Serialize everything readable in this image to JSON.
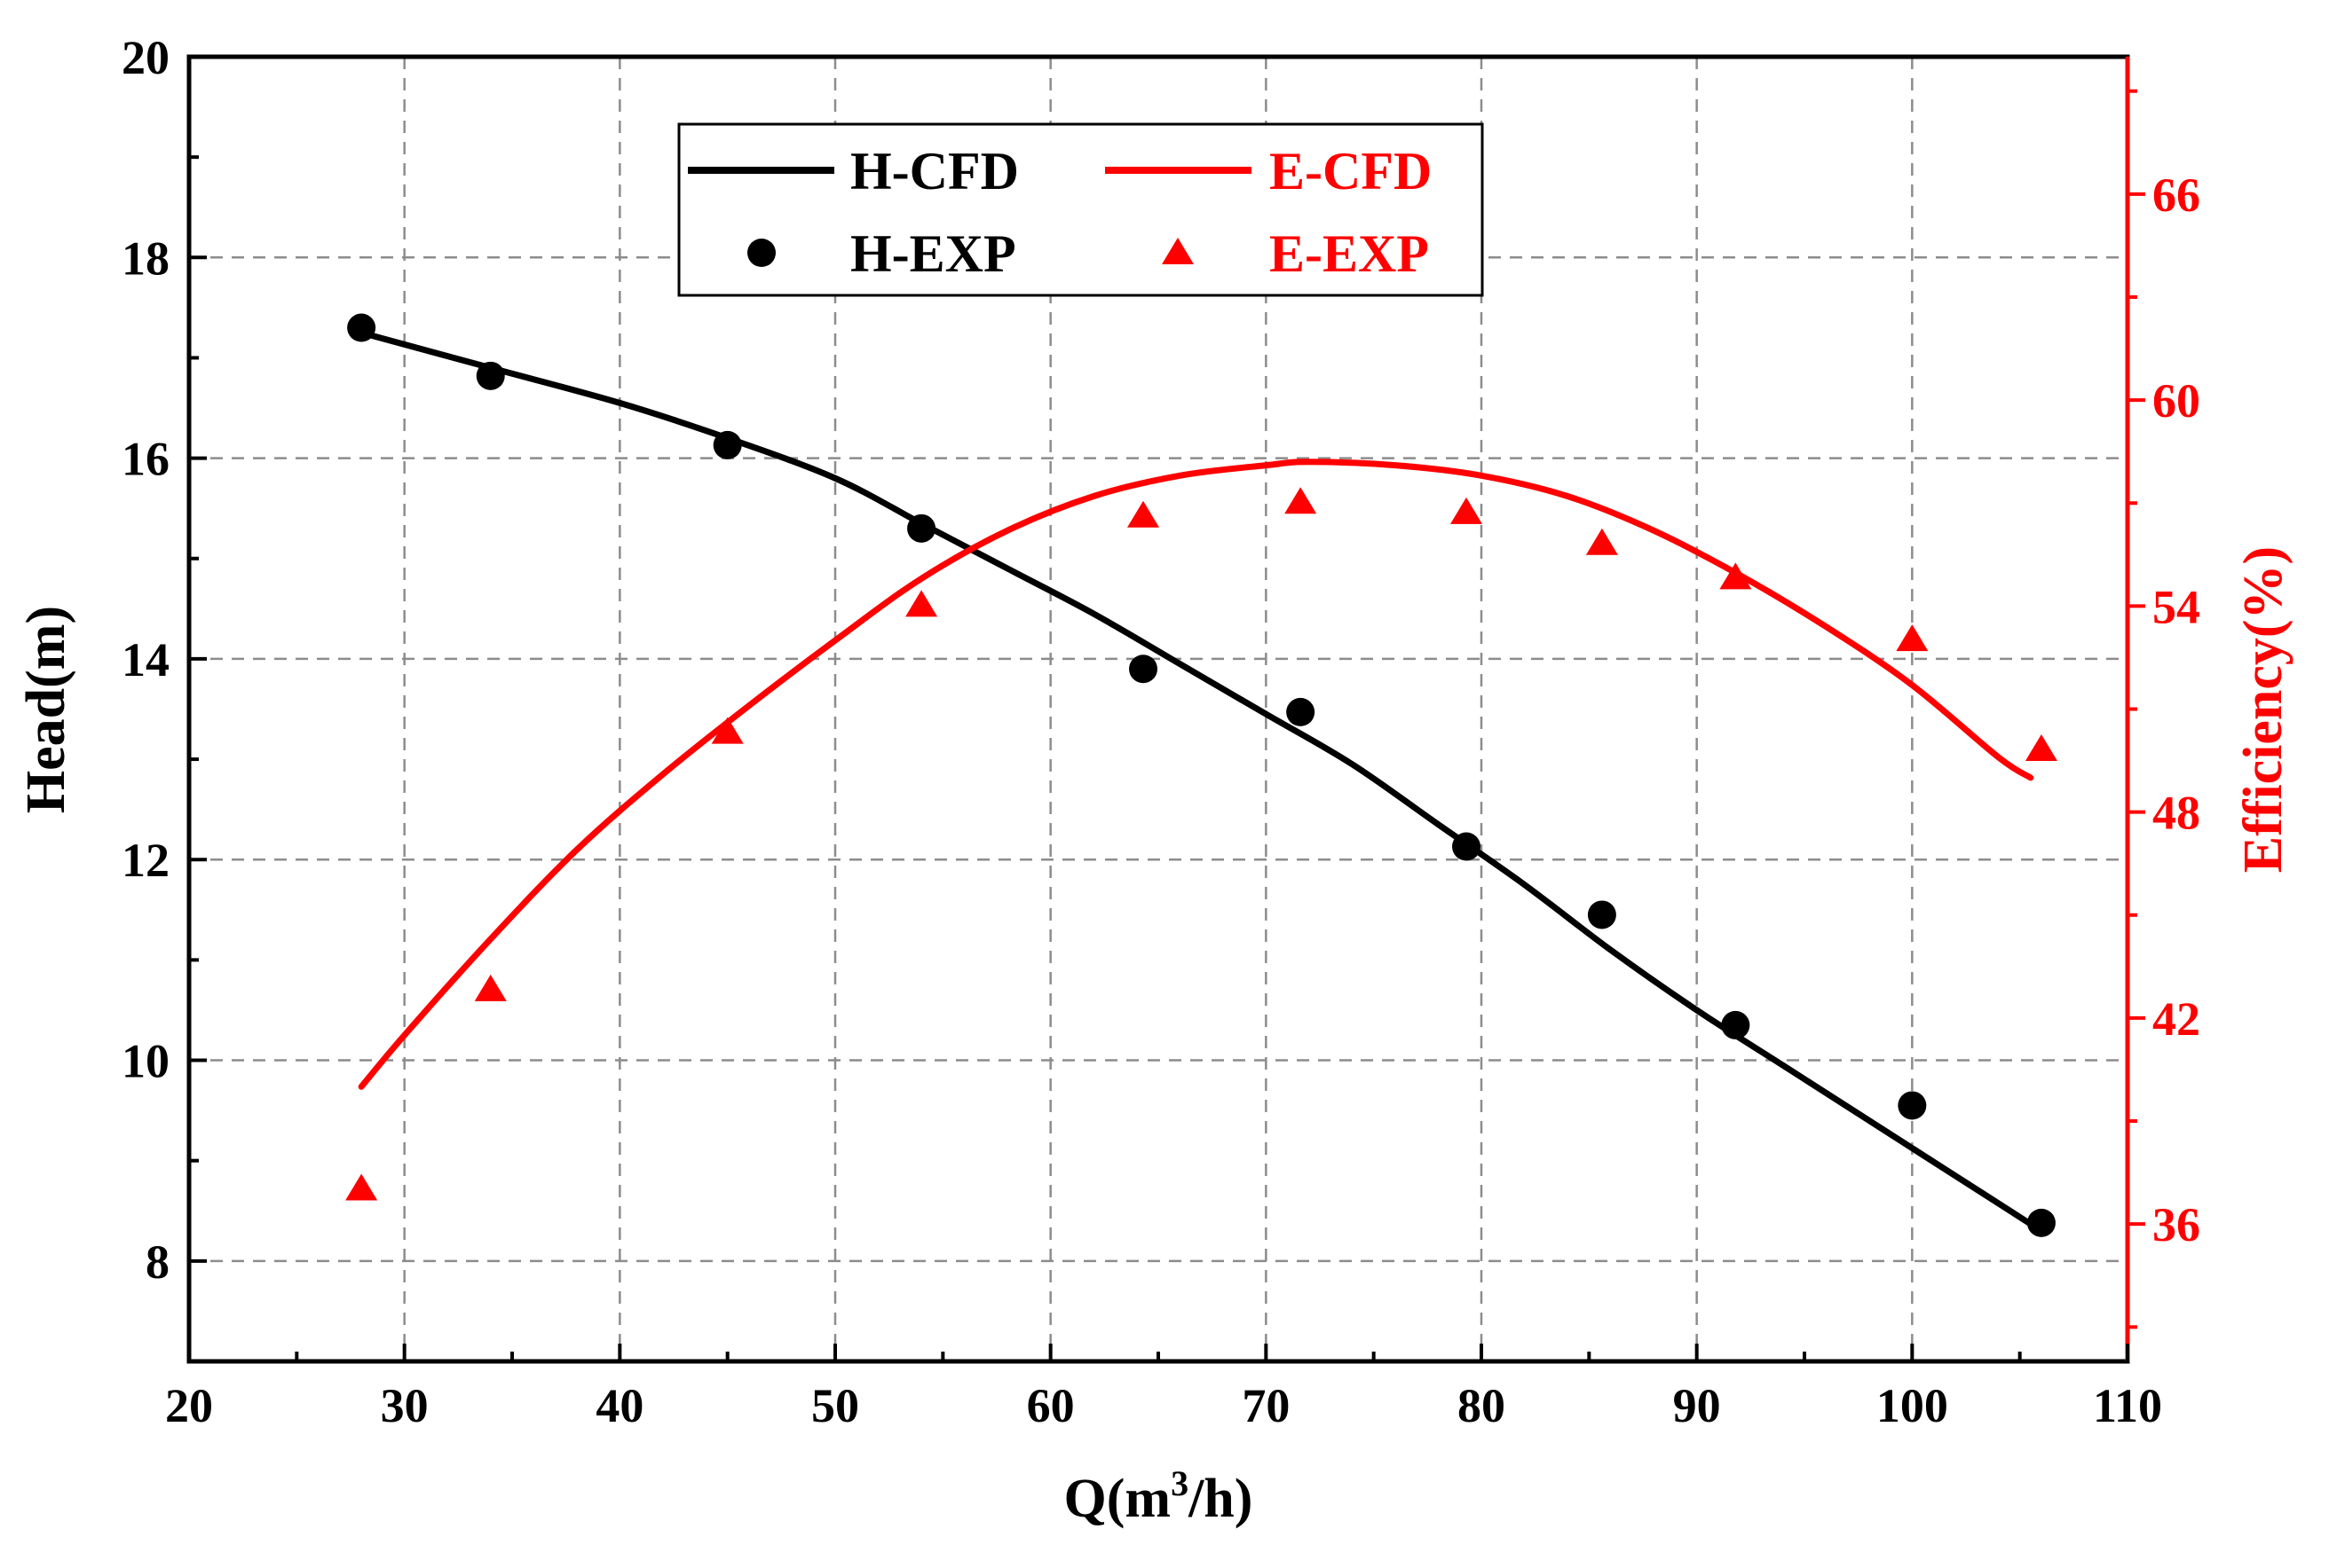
{
  "chart_data": {
    "type": "line",
    "title": "",
    "xlabel": {
      "prefix": "Q(m",
      "sup": "3",
      "suffix": "/h)"
    },
    "ylabel_left": "Head(m)",
    "ylabel_right": "Efficiency(%)",
    "xlim": [
      20,
      110
    ],
    "ylim_left": [
      7,
      20
    ],
    "ylim_right": [
      32,
      70
    ],
    "x_ticks": [
      20,
      30,
      40,
      50,
      60,
      70,
      80,
      90,
      100,
      110
    ],
    "x_tick_labels": [
      "20",
      "30",
      "40",
      "50",
      "60",
      "70",
      "80",
      "90",
      "100",
      "110"
    ],
    "y_left_ticks": [
      8,
      10,
      12,
      14,
      16,
      18,
      20
    ],
    "y_left_tick_labels": [
      "8",
      "10",
      "12",
      "14",
      "16",
      "18",
      "20"
    ],
    "y_right_ticks": [
      36,
      42,
      48,
      54,
      60,
      66
    ],
    "y_right_tick_labels": [
      "36",
      "42",
      "48",
      "54",
      "60",
      "66"
    ],
    "grid": true,
    "legend_position": "top-center",
    "colors": {
      "head": "#000000",
      "efficiency": "#ff0000",
      "grid": "#8c8c8c"
    },
    "series": [
      {
        "name": "H-CFD",
        "kind": "line",
        "axis": "left",
        "color": "#000000",
        "x": [
          28,
          34,
          40,
          45,
          50,
          54,
          58,
          62,
          66,
          70,
          74,
          78,
          82,
          86,
          90,
          94,
          98,
          102,
          106
        ],
        "y": [
          17.25,
          16.9,
          16.55,
          16.2,
          15.8,
          15.35,
          14.9,
          14.45,
          13.95,
          13.45,
          12.95,
          12.35,
          11.75,
          11.1,
          10.5,
          9.95,
          9.4,
          8.85,
          8.3
        ]
      },
      {
        "name": "H-EXP",
        "kind": "scatter",
        "marker": "circle",
        "axis": "left",
        "color": "#000000",
        "x": [
          28,
          34,
          45,
          54,
          64.3,
          71.6,
          79.3,
          85.6,
          91.8,
          100,
          106
        ],
        "y": [
          17.3,
          16.82,
          16.13,
          15.3,
          13.9,
          13.47,
          12.13,
          11.45,
          10.35,
          9.55,
          8.38
        ]
      },
      {
        "name": "E-CFD",
        "kind": "line",
        "axis": "right",
        "color": "#ff0000",
        "x": [
          28,
          30,
          34,
          38,
          42,
          46,
          50,
          54,
          58,
          62,
          66,
          70,
          72,
          76,
          80,
          84,
          88,
          92,
          96,
          100,
          104,
          105.5
        ],
        "y": [
          40,
          41.5,
          44.3,
          46.9,
          49.1,
          51.1,
          53.0,
          54.8,
          56.2,
          57.2,
          57.8,
          58.1,
          58.2,
          58.1,
          57.8,
          57.2,
          56.2,
          54.9,
          53.4,
          51.7,
          49.6,
          49
        ]
      },
      {
        "name": "E-EXP",
        "kind": "scatter",
        "marker": "triangle",
        "axis": "right",
        "color": "#ff0000",
        "x": [
          28,
          34,
          45,
          54,
          64.3,
          71.6,
          79.3,
          85.6,
          91.8,
          100,
          106
        ],
        "y": [
          37,
          42.8,
          50.3,
          54,
          56.6,
          57,
          56.7,
          55.8,
          54.8,
          53,
          49.8
        ]
      }
    ],
    "legend": [
      {
        "label": "H-CFD",
        "series": "H-CFD"
      },
      {
        "label": "E-CFD",
        "series": "E-CFD"
      },
      {
        "label": "H-EXP",
        "series": "H-EXP"
      },
      {
        "label": "E-EXP",
        "series": "E-EXP"
      }
    ]
  }
}
